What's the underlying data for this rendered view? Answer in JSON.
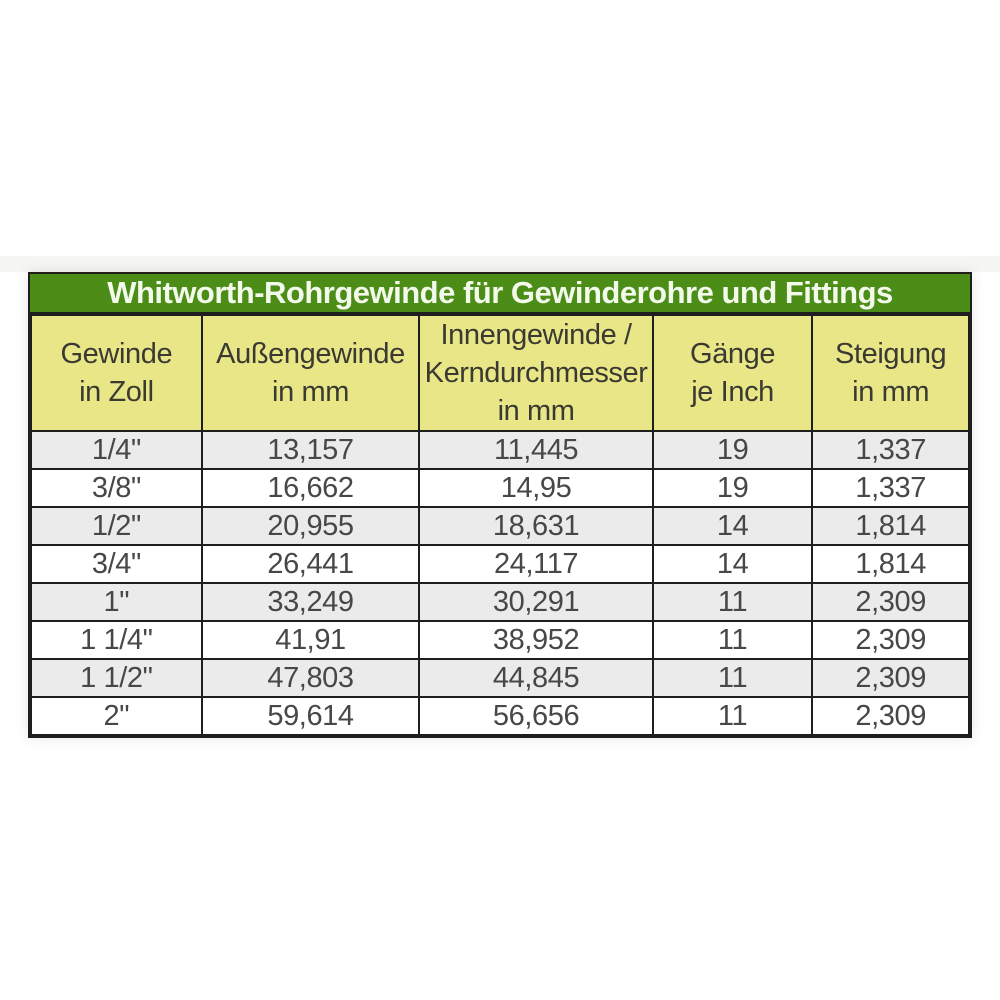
{
  "page": {
    "background": "#ffffff"
  },
  "colors": {
    "title_bar_green": "#4c8d18",
    "title_text": "#f3faec",
    "header_yellow": "#e9e687",
    "row_stripe_gray": "#ebebeb",
    "row_white": "#ffffff",
    "border_dark": "#1e1e1e",
    "header_text": "#3a3a32",
    "body_text": "#474747"
  },
  "table": {
    "header_lines": [
      [
        "Gewinde",
        "in Zoll"
      ],
      [
        "Außengewinde",
        "in mm"
      ],
      [
        "Innengewinde /",
        "Kerndurchmesser",
        "in mm"
      ],
      [
        "Gänge",
        "je Inch"
      ],
      [
        "Steigung",
        "in mm"
      ]
    ]
  },
  "chart_data": {
    "type": "table",
    "title": "Whitworth-Rohrgewinde für Gewinderohre und Fittings",
    "columns": [
      "Gewinde in Zoll",
      "Außengewinde in mm",
      "Innengewinde / Kerndurchmesser in mm",
      "Gänge je Inch",
      "Steigung in mm"
    ],
    "rows": [
      [
        "1/4\"",
        "13,157",
        "11,445",
        "19",
        "1,337"
      ],
      [
        "3/8\"",
        "16,662",
        "14,95",
        "19",
        "1,337"
      ],
      [
        "1/2\"",
        "20,955",
        "18,631",
        "14",
        "1,814"
      ],
      [
        "3/4\"",
        "26,441",
        "24,117",
        "14",
        "1,814"
      ],
      [
        "1\"",
        "33,249",
        "30,291",
        "11",
        "2,309"
      ],
      [
        "1 1/4\"",
        "41,91",
        "38,952",
        "11",
        "2,309"
      ],
      [
        "1 1/2\"",
        "47,803",
        "44,845",
        "11",
        "2,309"
      ],
      [
        "2\"",
        "59,614",
        "56,656",
        "11",
        "2,309"
      ]
    ]
  }
}
